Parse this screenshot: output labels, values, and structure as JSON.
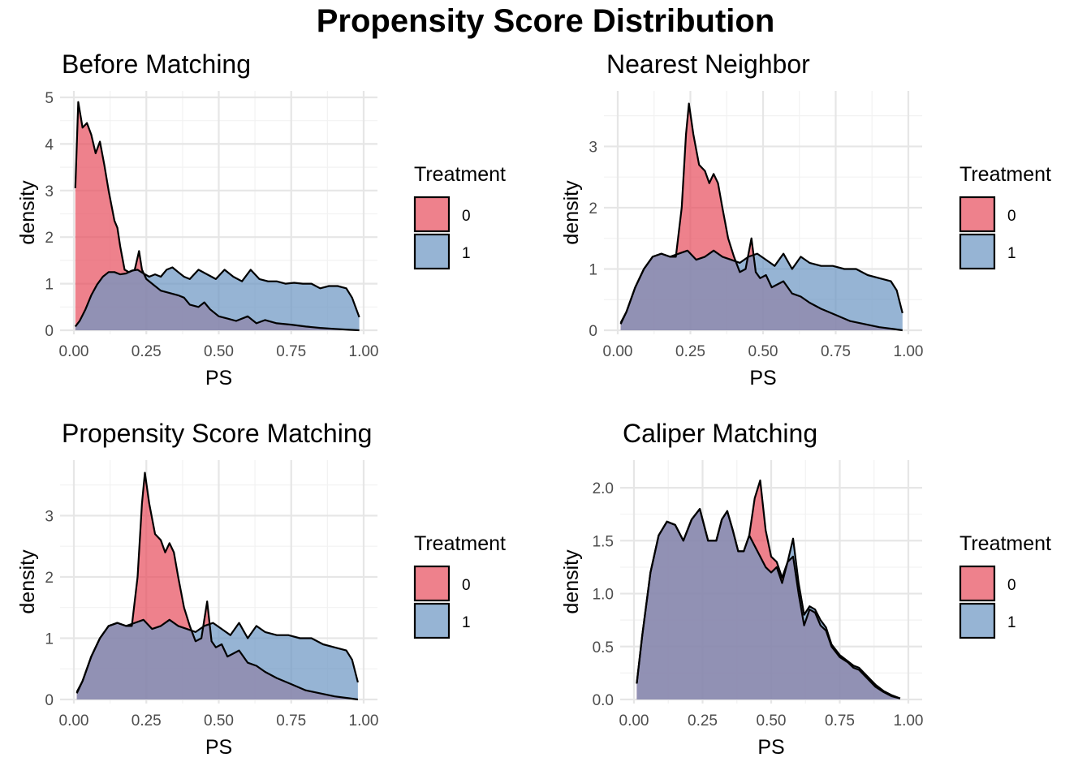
{
  "main_title": "Propensity Score Distribution",
  "colors": {
    "treatment_0": "#E8505F",
    "treatment_1": "#6E97C4",
    "outline": "#000000",
    "grid_major": "#E6E6E6",
    "grid_minor": "#F2F2F2"
  },
  "chart_data": [
    {
      "type": "area",
      "title": "Before Matching",
      "xlabel": "PS",
      "ylabel": "density",
      "xlim": [
        0,
        1
      ],
      "ylim": [
        0,
        5
      ],
      "xticks": [
        "0.00",
        "0.25",
        "0.50",
        "0.75",
        "1.00"
      ],
      "yticks": [
        "0",
        "1",
        "2",
        "3",
        "4",
        "5"
      ],
      "legend": {
        "title": "Treatment",
        "position": "right",
        "labels": [
          "0",
          "1"
        ]
      },
      "series": [
        {
          "name": "0",
          "x": [
            0.005,
            0.015,
            0.03,
            0.045,
            0.06,
            0.075,
            0.09,
            0.105,
            0.12,
            0.14,
            0.15,
            0.16,
            0.175,
            0.19,
            0.21,
            0.225,
            0.235,
            0.25,
            0.27,
            0.3,
            0.33,
            0.36,
            0.38,
            0.4,
            0.43,
            0.45,
            0.47,
            0.5,
            0.53,
            0.56,
            0.6,
            0.63,
            0.66,
            0.7,
            0.75,
            0.8,
            0.85,
            0.9,
            0.95,
            0.985
          ],
          "y": [
            3.05,
            4.9,
            4.35,
            4.45,
            4.2,
            3.8,
            4.05,
            3.55,
            3.0,
            2.35,
            2.2,
            1.8,
            1.3,
            1.25,
            1.3,
            1.7,
            1.3,
            1.1,
            1.0,
            0.85,
            0.8,
            0.75,
            0.7,
            0.55,
            0.5,
            0.6,
            0.45,
            0.3,
            0.25,
            0.2,
            0.3,
            0.15,
            0.22,
            0.15,
            0.12,
            0.08,
            0.05,
            0.03,
            0.01,
            0.0
          ]
        },
        {
          "name": "1",
          "x": [
            0.005,
            0.02,
            0.04,
            0.06,
            0.08,
            0.1,
            0.12,
            0.14,
            0.16,
            0.18,
            0.2,
            0.22,
            0.24,
            0.26,
            0.28,
            0.3,
            0.32,
            0.34,
            0.36,
            0.38,
            0.4,
            0.43,
            0.46,
            0.49,
            0.52,
            0.55,
            0.58,
            0.61,
            0.64,
            0.67,
            0.7,
            0.73,
            0.76,
            0.79,
            0.82,
            0.85,
            0.88,
            0.91,
            0.94,
            0.96,
            0.985
          ],
          "y": [
            0.08,
            0.2,
            0.45,
            0.75,
            0.98,
            1.15,
            1.25,
            1.25,
            1.2,
            1.22,
            1.28,
            1.3,
            1.22,
            1.15,
            1.2,
            1.15,
            1.3,
            1.35,
            1.25,
            1.15,
            1.1,
            1.3,
            1.2,
            1.1,
            1.3,
            1.15,
            1.05,
            1.3,
            1.1,
            1.05,
            1.05,
            1.0,
            1.02,
            1.0,
            1.0,
            0.9,
            0.95,
            0.95,
            0.9,
            0.7,
            0.28
          ]
        }
      ]
    },
    {
      "type": "area",
      "title": "Nearest Neighbor",
      "xlabel": "PS",
      "ylabel": "density",
      "xlim": [
        0,
        1
      ],
      "ylim": [
        0,
        3.8
      ],
      "xticks": [
        "0.00",
        "0.25",
        "0.50",
        "0.75",
        "1.00"
      ],
      "yticks": [
        "0",
        "1",
        "2",
        "3"
      ],
      "legend": {
        "title": "Treatment",
        "position": "right",
        "labels": [
          "0",
          "1"
        ]
      },
      "series": [
        {
          "name": "0",
          "x": [
            0.01,
            0.03,
            0.06,
            0.09,
            0.12,
            0.15,
            0.18,
            0.2,
            0.22,
            0.235,
            0.245,
            0.26,
            0.28,
            0.3,
            0.315,
            0.33,
            0.345,
            0.36,
            0.38,
            0.4,
            0.42,
            0.44,
            0.46,
            0.475,
            0.49,
            0.51,
            0.53,
            0.55,
            0.57,
            0.6,
            0.63,
            0.66,
            0.7,
            0.75,
            0.8,
            0.85,
            0.9,
            0.95,
            0.98
          ],
          "y": [
            0.12,
            0.3,
            0.7,
            1.0,
            1.2,
            1.25,
            1.2,
            1.2,
            2.0,
            3.2,
            3.7,
            3.2,
            2.7,
            2.6,
            2.4,
            2.55,
            2.4,
            2.0,
            1.5,
            1.2,
            0.95,
            1.0,
            1.5,
            0.95,
            0.85,
            0.9,
            0.7,
            0.75,
            0.8,
            0.6,
            0.55,
            0.45,
            0.35,
            0.25,
            0.15,
            0.1,
            0.05,
            0.02,
            0.0
          ]
        },
        {
          "name": "1",
          "x": [
            0.01,
            0.03,
            0.06,
            0.09,
            0.12,
            0.15,
            0.18,
            0.21,
            0.24,
            0.27,
            0.3,
            0.33,
            0.36,
            0.39,
            0.42,
            0.45,
            0.48,
            0.51,
            0.54,
            0.57,
            0.6,
            0.63,
            0.66,
            0.7,
            0.74,
            0.78,
            0.82,
            0.86,
            0.9,
            0.94,
            0.96,
            0.98
          ],
          "y": [
            0.1,
            0.3,
            0.7,
            1.0,
            1.2,
            1.25,
            1.2,
            1.25,
            1.3,
            1.15,
            1.2,
            1.3,
            1.2,
            1.15,
            1.1,
            1.2,
            1.25,
            1.15,
            1.05,
            1.25,
            1.0,
            1.2,
            1.1,
            1.05,
            1.05,
            1.0,
            1.0,
            0.9,
            0.85,
            0.8,
            0.65,
            0.28
          ]
        }
      ]
    },
    {
      "type": "area",
      "title": "Propensity Score Matching",
      "xlabel": "PS",
      "ylabel": "density",
      "xlim": [
        0,
        1
      ],
      "ylim": [
        0,
        3.8
      ],
      "xticks": [
        "0.00",
        "0.25",
        "0.50",
        "0.75",
        "1.00"
      ],
      "yticks": [
        "0",
        "1",
        "2",
        "3"
      ],
      "legend": {
        "title": "Treatment",
        "position": "right",
        "labels": [
          "0",
          "1"
        ]
      },
      "series": [
        {
          "name": "0",
          "x": [
            0.01,
            0.03,
            0.06,
            0.09,
            0.12,
            0.15,
            0.18,
            0.2,
            0.22,
            0.235,
            0.245,
            0.26,
            0.28,
            0.3,
            0.315,
            0.33,
            0.345,
            0.36,
            0.38,
            0.4,
            0.42,
            0.44,
            0.46,
            0.475,
            0.49,
            0.51,
            0.53,
            0.55,
            0.57,
            0.6,
            0.63,
            0.66,
            0.7,
            0.75,
            0.8,
            0.85,
            0.9,
            0.95,
            0.98
          ],
          "y": [
            0.12,
            0.3,
            0.7,
            1.0,
            1.2,
            1.25,
            1.2,
            1.2,
            2.0,
            3.2,
            3.7,
            3.2,
            2.7,
            2.6,
            2.4,
            2.55,
            2.4,
            2.0,
            1.5,
            1.2,
            0.95,
            1.0,
            1.6,
            0.95,
            0.85,
            0.9,
            0.7,
            0.75,
            0.8,
            0.6,
            0.55,
            0.45,
            0.35,
            0.25,
            0.15,
            0.1,
            0.05,
            0.02,
            0.0
          ]
        },
        {
          "name": "1",
          "x": [
            0.01,
            0.03,
            0.06,
            0.09,
            0.12,
            0.15,
            0.18,
            0.21,
            0.24,
            0.27,
            0.3,
            0.33,
            0.36,
            0.39,
            0.42,
            0.45,
            0.48,
            0.51,
            0.54,
            0.57,
            0.6,
            0.63,
            0.66,
            0.7,
            0.74,
            0.78,
            0.82,
            0.86,
            0.9,
            0.94,
            0.96,
            0.98
          ],
          "y": [
            0.1,
            0.3,
            0.7,
            1.0,
            1.2,
            1.25,
            1.2,
            1.25,
            1.3,
            1.15,
            1.2,
            1.3,
            1.2,
            1.15,
            1.1,
            1.2,
            1.25,
            1.15,
            1.05,
            1.25,
            1.0,
            1.2,
            1.1,
            1.05,
            1.05,
            1.0,
            1.0,
            0.9,
            0.85,
            0.8,
            0.65,
            0.28
          ]
        }
      ]
    },
    {
      "type": "area",
      "title": "Caliper Matching",
      "xlabel": "PS",
      "ylabel": "density",
      "xlim": [
        0,
        1
      ],
      "ylim": [
        0,
        2.2
      ],
      "xticks": [
        "0.00",
        "0.25",
        "0.50",
        "0.75",
        "1.00"
      ],
      "yticks": [
        "0.0",
        "0.5",
        "1.0",
        "1.5",
        "2.0"
      ],
      "legend": {
        "title": "Treatment",
        "position": "right",
        "labels": [
          "0",
          "1"
        ]
      },
      "series": [
        {
          "name": "0",
          "x": [
            0.01,
            0.03,
            0.06,
            0.09,
            0.12,
            0.15,
            0.18,
            0.21,
            0.24,
            0.27,
            0.3,
            0.32,
            0.34,
            0.36,
            0.38,
            0.4,
            0.42,
            0.44,
            0.46,
            0.48,
            0.5,
            0.52,
            0.54,
            0.56,
            0.58,
            0.6,
            0.62,
            0.64,
            0.66,
            0.68,
            0.7,
            0.72,
            0.75,
            0.78,
            0.8,
            0.82,
            0.85,
            0.88,
            0.91,
            0.94,
            0.97
          ],
          "y": [
            0.15,
            0.6,
            1.2,
            1.55,
            1.68,
            1.65,
            1.5,
            1.7,
            1.8,
            1.5,
            1.5,
            1.7,
            1.78,
            1.6,
            1.4,
            1.4,
            1.55,
            1.9,
            2.07,
            1.6,
            1.35,
            1.3,
            1.15,
            1.3,
            1.35,
            1.0,
            0.7,
            0.85,
            0.82,
            0.7,
            0.65,
            0.5,
            0.4,
            0.35,
            0.3,
            0.28,
            0.2,
            0.12,
            0.07,
            0.03,
            0.01
          ]
        },
        {
          "name": "1",
          "x": [
            0.01,
            0.03,
            0.06,
            0.09,
            0.12,
            0.15,
            0.18,
            0.21,
            0.24,
            0.27,
            0.3,
            0.32,
            0.34,
            0.36,
            0.38,
            0.4,
            0.42,
            0.44,
            0.46,
            0.48,
            0.5,
            0.52,
            0.54,
            0.56,
            0.58,
            0.6,
            0.62,
            0.64,
            0.66,
            0.68,
            0.7,
            0.72,
            0.75,
            0.78,
            0.8,
            0.82,
            0.85,
            0.88,
            0.91,
            0.94,
            0.97
          ],
          "y": [
            0.15,
            0.6,
            1.2,
            1.55,
            1.68,
            1.65,
            1.5,
            1.7,
            1.8,
            1.5,
            1.5,
            1.7,
            1.78,
            1.6,
            1.4,
            1.4,
            1.55,
            1.45,
            1.35,
            1.25,
            1.2,
            1.25,
            1.1,
            1.3,
            1.52,
            1.1,
            0.8,
            0.88,
            0.85,
            0.75,
            0.68,
            0.52,
            0.42,
            0.36,
            0.32,
            0.3,
            0.22,
            0.14,
            0.08,
            0.04,
            0.01
          ]
        }
      ]
    }
  ]
}
